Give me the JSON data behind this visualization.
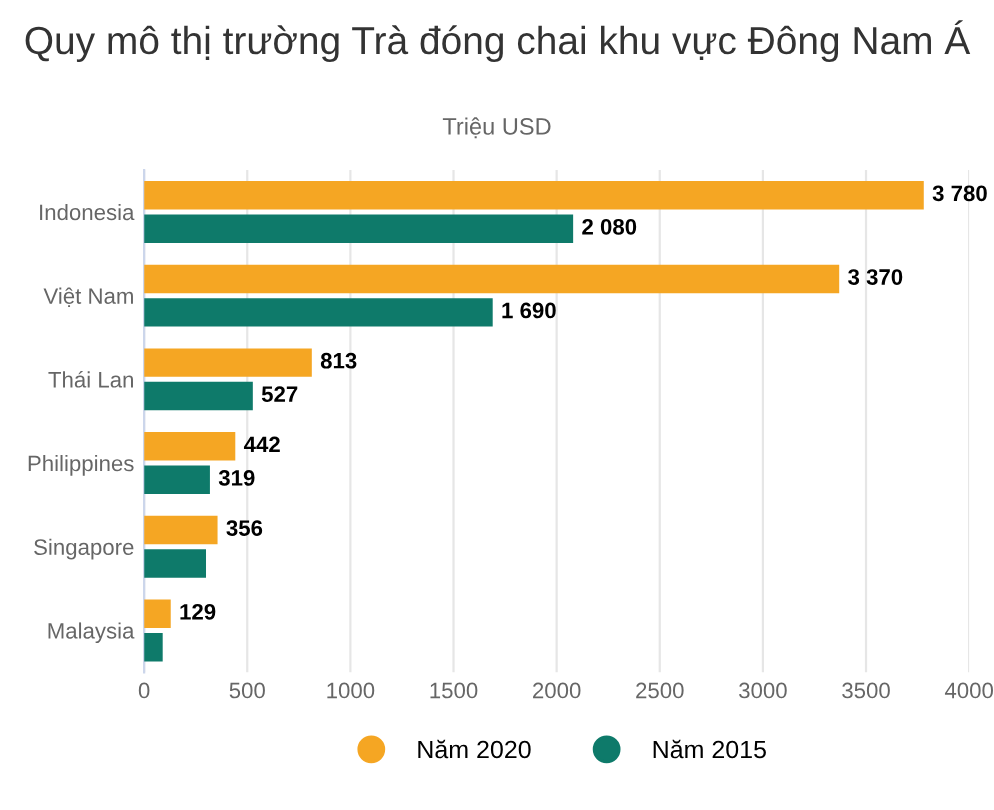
{
  "chart_data": {
    "type": "bar",
    "orientation": "horizontal",
    "title": "Quy mô thị trường Trà đóng chai khu vực Đông Nam Á",
    "subtitle": "Triệu USD",
    "categories": [
      "Indonesia",
      "Việt Nam",
      "Thái Lan",
      "Philippines",
      "Singapore",
      "Malaysia"
    ],
    "series": [
      {
        "name": "Năm 2020",
        "color": "#f5a623",
        "values": [
          3780,
          3370,
          813,
          442,
          356,
          129
        ],
        "value_labels": [
          "3 780",
          "3 370",
          "813",
          "442",
          "356",
          "129"
        ]
      },
      {
        "name": "Năm 2015",
        "color": "#0e7a6a",
        "values": [
          2080,
          1690,
          527,
          319,
          300,
          90
        ],
        "value_labels": [
          "2 080",
          "1 690",
          "527",
          "319",
          null,
          null
        ]
      }
    ],
    "xlim": [
      0,
      4000
    ],
    "xticks": [
      0,
      500,
      1000,
      1500,
      2000,
      2500,
      3000,
      3500,
      4000
    ],
    "grid": "x",
    "legend": "bottom"
  }
}
